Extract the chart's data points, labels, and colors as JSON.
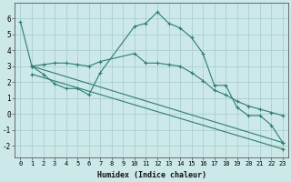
{
  "xlabel": "Humidex (Indice chaleur)",
  "ylabel": "",
  "background_color": "#cce8e8",
  "grid_color": "#aacfcf",
  "line_color": "#2e7d6e",
  "xlim": [
    -0.5,
    23.5
  ],
  "ylim": [
    -2.7,
    7.0
  ],
  "xticks": [
    0,
    1,
    2,
    3,
    4,
    5,
    6,
    7,
    8,
    9,
    10,
    11,
    12,
    13,
    14,
    15,
    16,
    17,
    18,
    19,
    20,
    21,
    22,
    23
  ],
  "yticks": [
    -2,
    -1,
    0,
    1,
    2,
    3,
    4,
    5,
    6
  ],
  "line1_x": [
    0,
    1,
    2,
    3,
    4,
    5,
    6,
    7,
    10,
    11,
    12,
    13,
    14,
    15,
    16,
    17,
    18,
    19,
    20,
    21,
    22,
    23
  ],
  "line1_y": [
    5.8,
    3.0,
    2.5,
    1.9,
    1.6,
    1.6,
    1.2,
    2.6,
    5.5,
    5.7,
    6.4,
    5.7,
    5.4,
    4.8,
    3.8,
    1.8,
    1.8,
    0.4,
    -0.1,
    -0.1,
    -0.7,
    -1.8
  ],
  "line2_x": [
    1,
    2,
    3,
    4,
    5,
    6,
    7,
    10,
    11,
    12,
    13,
    14,
    15,
    16,
    17,
    18,
    19,
    20,
    21,
    22,
    23
  ],
  "line2_y": [
    3.0,
    3.1,
    3.2,
    3.2,
    3.1,
    3.0,
    3.3,
    3.8,
    3.2,
    3.2,
    3.1,
    3.0,
    2.6,
    2.1,
    1.5,
    1.2,
    0.8,
    0.5,
    0.3,
    0.1,
    -0.1
  ],
  "line3_x": [
    1,
    23
  ],
  "line3_y": [
    3.0,
    -1.8
  ],
  "line4_x": [
    1,
    23
  ],
  "line4_y": [
    2.5,
    -2.2
  ]
}
